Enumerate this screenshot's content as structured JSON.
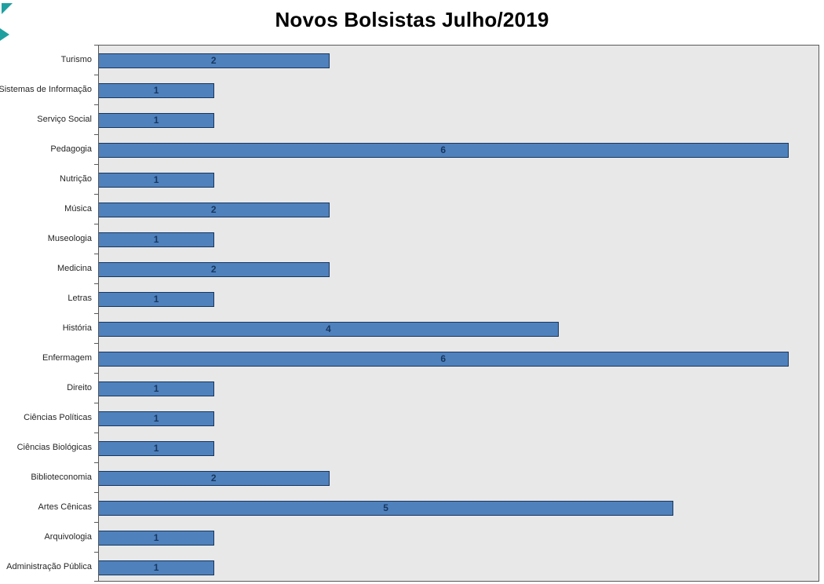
{
  "chart_data": {
    "type": "bar",
    "orientation": "horizontal",
    "title": "Novos Bolsistas Julho/2019",
    "categories": [
      "Turismo",
      "Sistemas de Informação",
      "Serviço Social",
      "Pedagogia",
      "Nutrição",
      "Música",
      "Museologia",
      "Medicina",
      "Letras",
      "História",
      "Enfermagem",
      "Direito",
      "Ciências Políticas",
      "Ciências Biológicas",
      "Biblioteconomia",
      "Artes Cênicas",
      "Arquivologia",
      "Administração Pública"
    ],
    "values": [
      2,
      1,
      1,
      6,
      1,
      2,
      1,
      2,
      1,
      4,
      6,
      1,
      1,
      1,
      2,
      5,
      1,
      1
    ],
    "xlabel": "",
    "ylabel": "",
    "xlim": [
      0,
      6.27
    ],
    "grid": false,
    "legend": "none",
    "data_labels": "inside-center",
    "colors": {
      "bar_fill": "#4F81BD",
      "bar_border": "#17375E",
      "value_label": "#17375E",
      "plot_bg": "#E8E8E8",
      "axis_text": "#262626",
      "artifact": "#1FA0A0"
    }
  }
}
